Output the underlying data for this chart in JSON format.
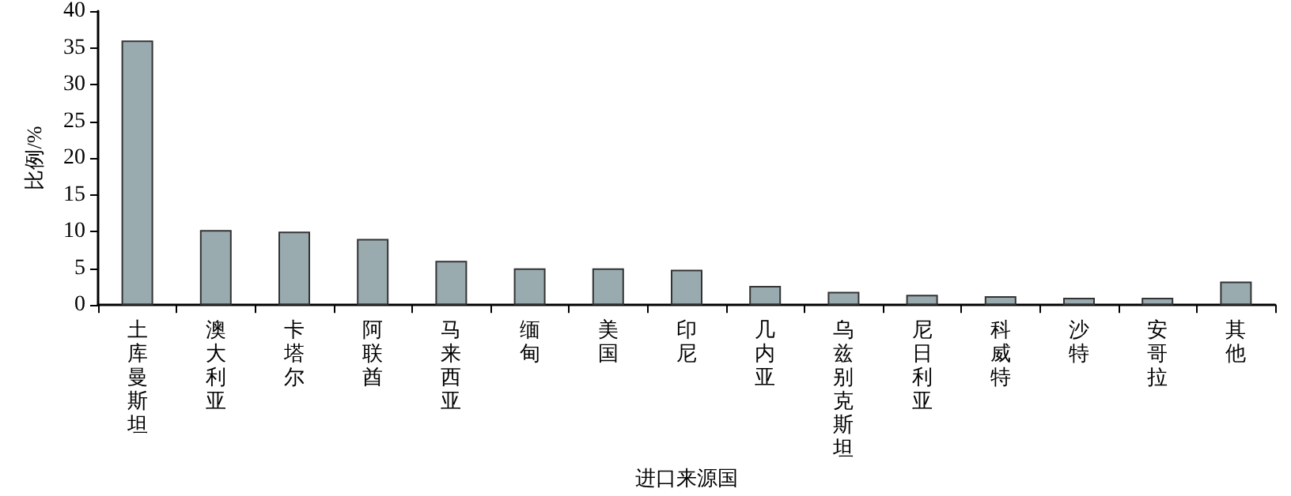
{
  "chart_data": {
    "type": "bar",
    "xlabel": "进口来源国",
    "ylabel": "比例/%",
    "categories": [
      "土库曼斯坦",
      "澳大利亚",
      "卡塔尔",
      "阿联酋",
      "马来西亚",
      "缅甸",
      "美国",
      "印尼",
      "几内亚",
      "乌兹别克斯坦",
      "尼日利亚",
      "科威特",
      "沙特",
      "安哥拉",
      "其他"
    ],
    "values": [
      36,
      10.2,
      10,
      9,
      6,
      5,
      5,
      4.8,
      2.6,
      1.8,
      1.4,
      1.2,
      1.0,
      1.0,
      3.2
    ],
    "color": "#9aabb0",
    "ylim": [
      0,
      40
    ],
    "yticks": [
      0,
      5,
      10,
      15,
      20,
      25,
      30,
      35,
      40
    ],
    "grid": false
  }
}
